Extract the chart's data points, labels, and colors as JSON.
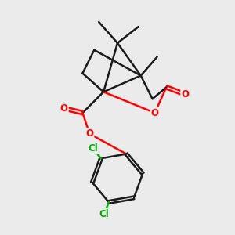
{
  "bg_color": "#ebebeb",
  "bond_color": "#1a1a1a",
  "oxygen_color": "#ff0000",
  "chlorine_color": "#00aa00",
  "bond_width": 1.8,
  "font_size_atom": 8.5,
  "fig_size": [
    3.0,
    3.0
  ],
  "dpi": 100,
  "xlim": [
    0,
    10
  ],
  "ylim": [
    0,
    10
  ]
}
